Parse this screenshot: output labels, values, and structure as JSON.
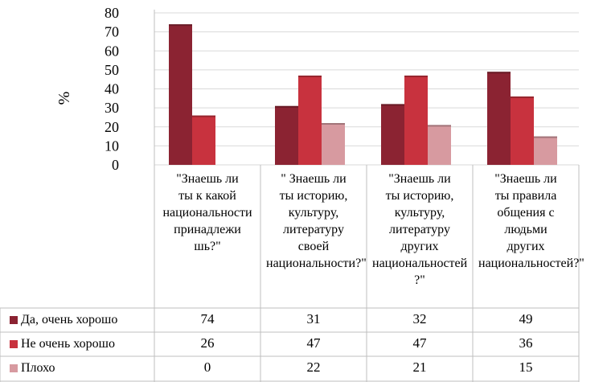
{
  "chart_data": {
    "type": "bar",
    "ylabel": "%",
    "ylim": [
      0,
      80
    ],
    "yticks": [
      0,
      10,
      20,
      30,
      40,
      50,
      60,
      70,
      80
    ],
    "grid": true,
    "legend": "table-bottom-left",
    "categories": [
      "\"Знаешь ли\nты к какой\nнациональноcти\nпринадлежи\nшь?\"",
      "\" Знаешь ли\nты историю,\nкультуру,\nлитературу\nсвоей\nнациональноcти?\"",
      "\"Знаешь ли\nты историю,\nкультуру,\nлитературу\nдругих\nнациональноcтей ?\"",
      "\"Знаешь ли\nты правила\nобщения с\nлюдьми\nдругих\nнациональноcтей?\""
    ],
    "series": [
      {
        "name": "Да, очень хорошо",
        "values": [
          74,
          31,
          32,
          49
        ],
        "color": "#8b2332"
      },
      {
        "name": "Не очень хорошо",
        "values": [
          26,
          47,
          47,
          36
        ],
        "color": "#c8323e"
      },
      {
        "name": "Плохо",
        "values": [
          0,
          22,
          21,
          15
        ],
        "color": "#d79aa0"
      }
    ]
  }
}
